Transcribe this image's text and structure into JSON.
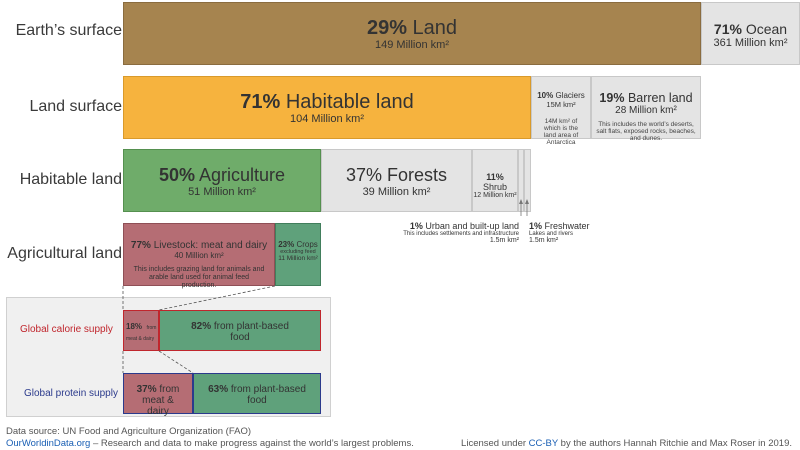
{
  "chart_data": {
    "type": "bar",
    "rows": [
      {
        "label": "Earth’s surface",
        "segments": [
          {
            "pct": "29%",
            "name": "Land",
            "area": "149 Million km²",
            "value": 149,
            "color": "#a6844f"
          },
          {
            "pct": "71%",
            "name": "Ocean",
            "area": "361 Million km²",
            "value": 361,
            "color": "#e4e4e4"
          }
        ]
      },
      {
        "label": "Land surface",
        "segments": [
          {
            "pct": "71%",
            "name": "Habitable land",
            "area": "104 Million km²",
            "value": 104,
            "color": "#f6b33e"
          },
          {
            "pct": "10%",
            "name": "Glaciers",
            "area": "15M km²",
            "note": "14M km² of which is the land area of Antarctica",
            "value": 15,
            "color": "#e4e4e4"
          },
          {
            "pct": "19%",
            "name": "Barren land",
            "area": "28 Million km²",
            "note": "This includes the world’s deserts, salt flats, exposed rocks, beaches, and dunes.",
            "value": 28,
            "color": "#e4e4e4"
          }
        ]
      },
      {
        "label": "Habitable land",
        "segments": [
          {
            "pct": "50%",
            "name": "Agriculture",
            "area": "51 Million km²",
            "value": 51,
            "color": "#6fac6a"
          },
          {
            "pct": "37%",
            "name": "Forests",
            "area": "39 Million km²",
            "value": 39,
            "color": "#e4e4e4"
          },
          {
            "pct": "11%",
            "name": "Shrub",
            "area": "12 Million km²",
            "value": 12,
            "color": "#e4e4e4"
          },
          {
            "pct": "1%",
            "name": "Urban and built-up land",
            "area": "1.5m km²",
            "note": "This includes settlements and infrastructure",
            "value": 1.5,
            "color": "#e4e4e4"
          },
          {
            "pct": "1%",
            "name": "Freshwater",
            "area": "1.5m km²",
            "note": "Lakes and rivers",
            "value": 1.5,
            "color": "#e4e4e4"
          }
        ]
      },
      {
        "label": "Agricultural land",
        "segments": [
          {
            "pct": "77%",
            "name": "Livestock: meat and dairy",
            "area": "40 Million km²",
            "note": "This includes grazing land for animals and arable land used for animal feed production.",
            "value": 40,
            "color": "#b56d74"
          },
          {
            "pct": "23%",
            "name": "Crops",
            "subnote": "excluding feed",
            "area": "11 Million km²",
            "value": 11,
            "color": "#5fa17b"
          }
        ]
      }
    ],
    "supply": [
      {
        "label": "Global calorie supply",
        "label_color": "#c0262d",
        "segments": [
          {
            "pct": "18%",
            "name": "from meat & dairy",
            "value": 18,
            "color": "#b56d74"
          },
          {
            "pct": "82%",
            "name": "from plant-based food",
            "value": 82,
            "color": "#5fa17b"
          }
        ]
      },
      {
        "label": "Global protein supply",
        "label_color": "#2b3a8c",
        "segments": [
          {
            "pct": "37%",
            "name": "from meat & dairy",
            "value": 37,
            "color": "#b56d74"
          },
          {
            "pct": "63%",
            "name": "from plant-based food",
            "value": 63,
            "color": "#5fa17b"
          }
        ]
      }
    ]
  },
  "footer": {
    "source": "Data source: UN Food and Agriculture Organization (FAO)",
    "site": "OurWorldinData.org",
    "tagline": " – Research and data to make progress against the world’s largest problems.",
    "license_pre": "Licensed under ",
    "license_link": "CC-BY",
    "license_post": " by the authors Hannah Ritchie and Max Roser in 2019."
  }
}
